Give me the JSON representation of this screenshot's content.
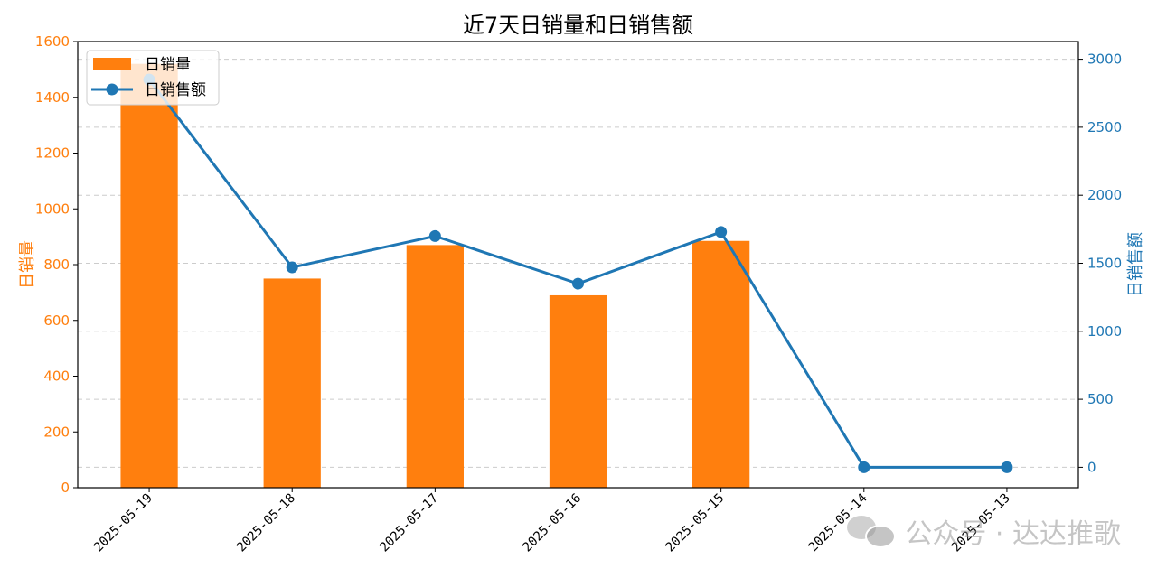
{
  "chart_data": {
    "type": "bar+line",
    "title": "近7天日销量和日销售额",
    "categories": [
      "2025-05-19",
      "2025-05-18",
      "2025-05-17",
      "2025-05-16",
      "2025-05-15",
      "2025-05-14",
      "2025-05-13"
    ],
    "bar_series": {
      "name": "日销量",
      "values": [
        1520,
        750,
        870,
        690,
        885,
        0,
        0
      ],
      "color": "#ff7f0e"
    },
    "line_series": {
      "name": "日销售额",
      "values": [
        2850,
        1470,
        1700,
        1350,
        1730,
        0,
        0
      ],
      "color": "#1f77b4"
    },
    "y_left": {
      "label": "日销量",
      "min": 0,
      "max": 1600,
      "ticks": [
        0,
        200,
        400,
        600,
        800,
        1000,
        1200,
        1400,
        1600
      ],
      "color": "#ff7f0e"
    },
    "y_right": {
      "label": "日销售额",
      "min": -150,
      "max": 3130,
      "ticks": [
        0,
        500,
        1000,
        1500,
        2000,
        2500,
        3000
      ],
      "color": "#1f77b4"
    },
    "grid": "horizontal dashed",
    "legend": "top-left"
  },
  "watermark": {
    "text": "公众号 · 达达推歌"
  }
}
